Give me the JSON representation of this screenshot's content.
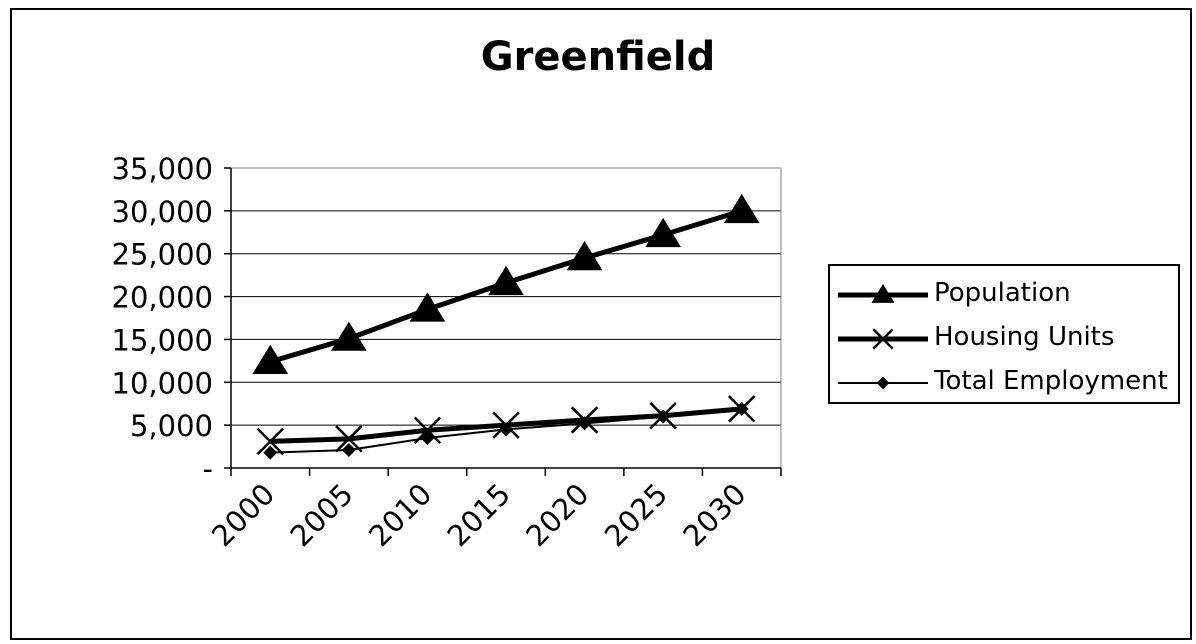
{
  "chart_data": {
    "type": "line",
    "title": "Greenfield",
    "xlabel": "",
    "ylabel": "",
    "x": [
      2000,
      2005,
      2010,
      2015,
      2020,
      2025,
      2030
    ],
    "ylim": [
      0,
      35000
    ],
    "y_ticks": [
      0,
      5000,
      10000,
      15000,
      20000,
      25000,
      30000,
      35000
    ],
    "y_tick_labels": [
      "-",
      "5,000",
      "10,000",
      "15,000",
      "20,000",
      "25,000",
      "30,000",
      "35,000"
    ],
    "x_tick_labels": [
      "2000",
      "2005",
      "2010",
      "2015",
      "2020",
      "2025",
      "2030"
    ],
    "grid": "horizontal",
    "legend_position": "right",
    "series": [
      {
        "name": "Population",
        "marker": "triangle",
        "values": [
          12400,
          15100,
          18500,
          21600,
          24500,
          27200,
          30000
        ]
      },
      {
        "name": "Housing Units",
        "marker": "x",
        "values": [
          3100,
          3400,
          4400,
          5000,
          5600,
          6100,
          6900
        ]
      },
      {
        "name": "Total Employment",
        "marker": "diamond",
        "values": [
          1800,
          2100,
          3500,
          4500,
          5200,
          6000,
          6900
        ]
      }
    ]
  }
}
